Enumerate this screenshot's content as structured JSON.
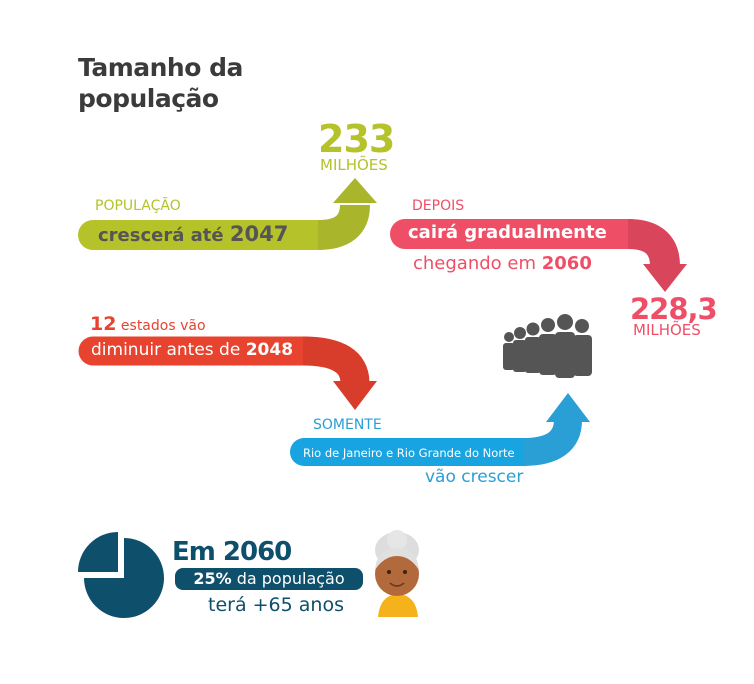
{
  "title_line1": "Tamanho da",
  "title_line2": "população",
  "growth": {
    "label": "POPULAÇÃO",
    "text": "crescerá até",
    "year": "2047",
    "peak_value": "233",
    "peak_unit": "MILHÕES",
    "color": "#b5c22a"
  },
  "decline": {
    "label": "DEPOIS",
    "text": "cairá gradualmente",
    "sub_text": "chegando em",
    "year": "2060",
    "final_value": "228,3",
    "final_unit": "MILHÕES",
    "color": "#ef4f66"
  },
  "states_decrease": {
    "count": "12",
    "count_text": "estados vão",
    "text": "diminuir antes de",
    "year": "2048",
    "color": "#e8432f"
  },
  "states_grow": {
    "label": "SOMENTE",
    "text": "Rio de Janeiro e Rio Grande do Norte",
    "sub_text": "vão crescer",
    "color": "#2a9fd6"
  },
  "aging": {
    "heading": "Em 2060",
    "percent": "25%",
    "percent_text": "da população",
    "sub_text": "terá +65 anos",
    "pie_fraction": 0.25,
    "color": "#0e4f6b"
  },
  "icons": [
    "people-group-icon",
    "pie-chart-icon",
    "elderly-woman-icon"
  ]
}
